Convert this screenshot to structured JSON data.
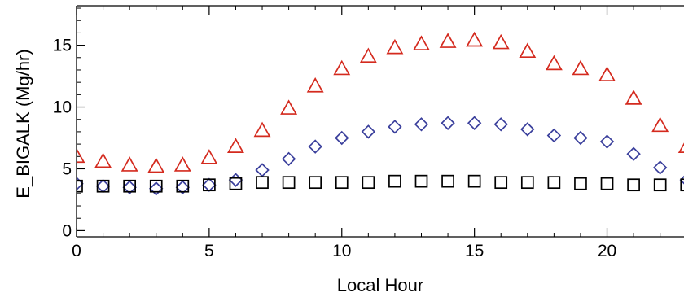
{
  "chart_data": {
    "type": "scatter",
    "xlabel": "Local Hour",
    "ylabel": "E_BIGALK (Mg/hr)",
    "xlim": [
      0,
      22.9
    ],
    "ylim": [
      -0.5,
      18.2
    ],
    "x_ticks": [
      0,
      5,
      10,
      15,
      20
    ],
    "y_ticks": [
      0,
      5,
      10,
      15
    ],
    "grid": false,
    "x": [
      0,
      1,
      2,
      3,
      4,
      5,
      6,
      7,
      8,
      9,
      10,
      11,
      12,
      13,
      14,
      15,
      16,
      17,
      18,
      19,
      20,
      21,
      22,
      23
    ],
    "series": [
      {
        "marker": "triangle",
        "color": "#d42a1e",
        "values": [
          6.0,
          5.6,
          5.3,
          5.2,
          5.3,
          5.9,
          6.8,
          8.1,
          9.9,
          11.7,
          13.1,
          14.1,
          14.8,
          15.1,
          15.3,
          15.4,
          15.2,
          14.5,
          13.5,
          13.1,
          12.6,
          10.7,
          8.5,
          6.8
        ]
      },
      {
        "marker": "diamond",
        "color": "#3a3f9c",
        "values": [
          3.8,
          3.6,
          3.5,
          3.4,
          3.5,
          3.7,
          4.1,
          4.9,
          5.8,
          6.8,
          7.5,
          8.0,
          8.4,
          8.6,
          8.7,
          8.7,
          8.6,
          8.2,
          7.7,
          7.5,
          7.2,
          6.2,
          5.1,
          4.1
        ]
      },
      {
        "marker": "square",
        "color": "#000000",
        "values": [
          3.6,
          3.6,
          3.6,
          3.6,
          3.6,
          3.7,
          3.8,
          3.9,
          3.9,
          3.9,
          3.9,
          3.9,
          4.0,
          4.0,
          4.0,
          4.0,
          3.9,
          3.9,
          3.9,
          3.8,
          3.8,
          3.7,
          3.7,
          3.7
        ]
      }
    ]
  }
}
